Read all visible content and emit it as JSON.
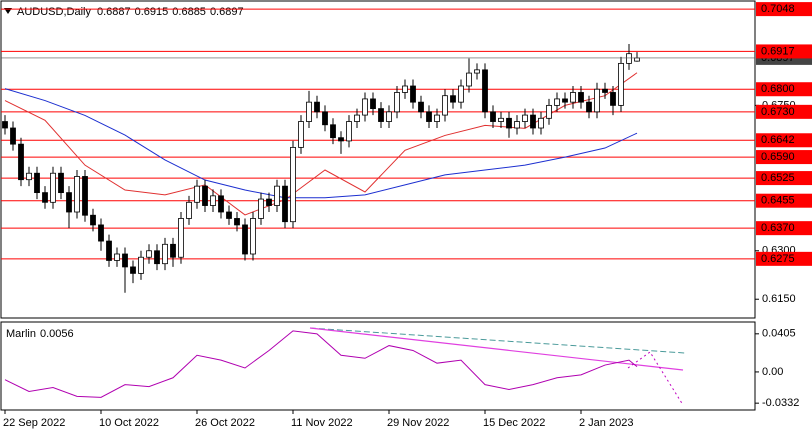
{
  "chart_data": [
    {
      "type": "candlestick",
      "title": "AUDUSD,Daily",
      "categories": [
        "22 Sep 2022",
        null,
        null,
        null,
        null,
        null,
        null,
        null,
        null,
        null,
        null,
        null,
        "10 Oct 2022",
        null,
        null,
        null,
        null,
        null,
        null,
        null,
        null,
        null,
        null,
        null,
        "26 Oct 2022",
        null,
        null,
        null,
        null,
        null,
        null,
        null,
        null,
        null,
        null,
        null,
        "11 Nov 2022",
        null,
        null,
        null,
        null,
        null,
        null,
        null,
        null,
        null,
        null,
        null,
        "29 Nov 2022",
        null,
        null,
        null,
        null,
        null,
        null,
        null,
        null,
        null,
        null,
        null,
        "15 Dec 2022",
        null,
        null,
        null,
        null,
        null,
        null,
        null,
        null,
        null,
        null,
        null,
        "2 Jan 2023",
        null,
        null,
        null,
        null,
        null,
        null,
        null
      ],
      "open": [
        0.67,
        0.668,
        0.663,
        0.652,
        0.654,
        0.648,
        0.645,
        0.654,
        0.648,
        0.642,
        0.653,
        0.641,
        0.638,
        0.633,
        0.627,
        0.629,
        0.625,
        0.623,
        0.628,
        0.63,
        0.626,
        0.632,
        0.628,
        0.64,
        0.645,
        0.65,
        0.644,
        0.647,
        0.642,
        0.64,
        0.638,
        0.629,
        0.64,
        0.646,
        0.644,
        0.65,
        0.639,
        0.662,
        0.67,
        0.676,
        0.673,
        0.669,
        0.665,
        0.664,
        0.67,
        0.672,
        0.677,
        0.674,
        0.67,
        0.673,
        0.679,
        0.681,
        0.676,
        0.673,
        0.67,
        0.672,
        0.678,
        0.676,
        0.681,
        0.685,
        0.686,
        0.673,
        0.67,
        0.671,
        0.668,
        0.67,
        0.672,
        0.668,
        0.671,
        0.675,
        0.677,
        0.676,
        0.679,
        0.676,
        0.673,
        0.68,
        0.679,
        0.675,
        0.688,
        0.6887
      ],
      "high": [
        0.672,
        0.67,
        0.665,
        0.656,
        0.656,
        0.65,
        0.656,
        0.656,
        0.65,
        0.655,
        0.655,
        0.643,
        0.64,
        0.635,
        0.631,
        0.631,
        0.627,
        0.63,
        0.632,
        0.632,
        0.634,
        0.634,
        0.642,
        0.647,
        0.652,
        0.652,
        0.649,
        0.649,
        0.644,
        0.642,
        0.64,
        0.642,
        0.648,
        0.648,
        0.652,
        0.652,
        0.664,
        0.672,
        0.6795,
        0.678,
        0.675,
        0.671,
        0.667,
        0.672,
        0.674,
        0.679,
        0.679,
        0.676,
        0.675,
        0.681,
        0.683,
        0.683,
        0.678,
        0.675,
        0.674,
        0.68,
        0.68,
        0.683,
        0.6895,
        0.688,
        0.688,
        0.675,
        0.673,
        0.673,
        0.672,
        0.674,
        0.674,
        0.673,
        0.677,
        0.679,
        0.679,
        0.681,
        0.681,
        0.678,
        0.682,
        0.682,
        0.681,
        0.69,
        0.694,
        0.6915
      ],
      "low": [
        0.666,
        0.661,
        0.65,
        0.65,
        0.646,
        0.643,
        0.643,
        0.646,
        0.637,
        0.64,
        0.639,
        0.636,
        0.63,
        0.625,
        0.625,
        0.617,
        0.62,
        0.621,
        0.626,
        0.624,
        0.624,
        0.625,
        0.626,
        0.638,
        0.643,
        0.642,
        0.642,
        0.64,
        0.638,
        0.636,
        0.627,
        0.627,
        0.638,
        0.642,
        0.642,
        0.637,
        0.637,
        0.66,
        0.668,
        0.671,
        0.667,
        0.663,
        0.66,
        0.662,
        0.668,
        0.67,
        0.672,
        0.668,
        0.668,
        0.671,
        0.677,
        0.674,
        0.671,
        0.668,
        0.668,
        0.67,
        0.674,
        0.674,
        0.679,
        0.683,
        0.671,
        0.668,
        0.668,
        0.665,
        0.666,
        0.668,
        0.666,
        0.666,
        0.669,
        0.673,
        0.674,
        0.674,
        0.674,
        0.671,
        0.671,
        0.677,
        0.672,
        0.673,
        0.686,
        0.6885
      ],
      "close": [
        0.668,
        0.663,
        0.652,
        0.654,
        0.648,
        0.645,
        0.654,
        0.648,
        0.642,
        0.653,
        0.641,
        0.638,
        0.633,
        0.627,
        0.629,
        0.625,
        0.623,
        0.628,
        0.63,
        0.626,
        0.632,
        0.628,
        0.64,
        0.645,
        0.65,
        0.644,
        0.647,
        0.642,
        0.64,
        0.638,
        0.629,
        0.64,
        0.646,
        0.644,
        0.65,
        0.639,
        0.662,
        0.67,
        0.676,
        0.673,
        0.669,
        0.665,
        0.664,
        0.67,
        0.672,
        0.677,
        0.674,
        0.67,
        0.673,
        0.679,
        0.681,
        0.676,
        0.673,
        0.67,
        0.672,
        0.678,
        0.676,
        0.681,
        0.685,
        0.686,
        0.673,
        0.67,
        0.671,
        0.668,
        0.67,
        0.672,
        0.668,
        0.671,
        0.675,
        0.677,
        0.676,
        0.679,
        0.676,
        0.673,
        0.68,
        0.679,
        0.675,
        0.688,
        0.691,
        0.6897
      ],
      "bull_color": "#ffffff",
      "bear_color": "#000000",
      "overlays": [
        {
          "color": "#e03030",
          "x": [
            0,
            5,
            10,
            15,
            20,
            25,
            30,
            35,
            40,
            45,
            50,
            55,
            60,
            65,
            70,
            75,
            79
          ],
          "values": [
            0.6765,
            0.6704,
            0.6565,
            0.6488,
            0.6473,
            0.6504,
            0.6411,
            0.6458,
            0.655,
            0.6482,
            0.6611,
            0.6657,
            0.6688,
            0.6679,
            0.675,
            0.678,
            0.6851
          ]
        },
        {
          "color": "#1c2fd0",
          "x": [
            0,
            5,
            10,
            15,
            20,
            25,
            30,
            35,
            40,
            45,
            50,
            55,
            60,
            65,
            70,
            75,
            79
          ],
          "values": [
            0.6802,
            0.6765,
            0.6719,
            0.6658,
            0.6581,
            0.6519,
            0.6488,
            0.6464,
            0.6464,
            0.6473,
            0.6504,
            0.6535,
            0.655,
            0.6565,
            0.659,
            0.6618,
            0.6664
          ]
        }
      ],
      "levels": {
        "color": "#ff0000",
        "values": [
          {
            "value": 0.7048,
            "label": "0.7048"
          },
          {
            "value": 0.6917,
            "label": "0.6917"
          },
          {
            "value": 0.68,
            "label": "0.6800"
          },
          {
            "value": 0.673,
            "label": "0.6730"
          },
          {
            "value": 0.6642,
            "label": "0.6642"
          },
          {
            "value": 0.659,
            "label": "0.6590"
          },
          {
            "value": 0.6525,
            "label": "0.6525"
          },
          {
            "value": 0.6455,
            "label": "0.6455"
          },
          {
            "value": 0.637,
            "label": "0.6370"
          },
          {
            "value": 0.6275,
            "label": "0.6275"
          }
        ]
      },
      "ylim": [
        0.6095,
        0.707
      ],
      "yticks": [
        {
          "value": 0.615,
          "label": "0.6150"
        },
        {
          "value": 0.63,
          "label": "0.6300"
        },
        {
          "value": 0.675,
          "label": "0.6750"
        }
      ]
    },
    {
      "type": "line",
      "title": "Marlin",
      "current": 0.0056,
      "series": [
        {
          "color": "#b000b0",
          "x": [
            0,
            3,
            6,
            9,
            12,
            15,
            18,
            21,
            24,
            27,
            30,
            33,
            36,
            39,
            42,
            45,
            48,
            51,
            54,
            57,
            60,
            63,
            66,
            69,
            72,
            75,
            78,
            79
          ],
          "values": [
            -0.0083,
            -0.0208,
            -0.0166,
            -0.026,
            -0.027,
            -0.0135,
            -0.0156,
            -0.0062,
            0.0177,
            0.0125,
            0.0042,
            0.0228,
            0.0436,
            0.0405,
            0.0177,
            0.0145,
            0.028,
            0.0228,
            0.0093,
            0.0125,
            -0.0135,
            -0.0187,
            -0.0135,
            -0.0062,
            -0.0031,
            0.0073,
            0.0125,
            0.0056
          ]
        }
      ],
      "ylim": [
        -0.0394,
        0.052
      ],
      "yticks": [
        0.0405,
        {
          "value": 0,
          "label": "0.00"
        },
        -0.0332
      ]
    }
  ]
}
